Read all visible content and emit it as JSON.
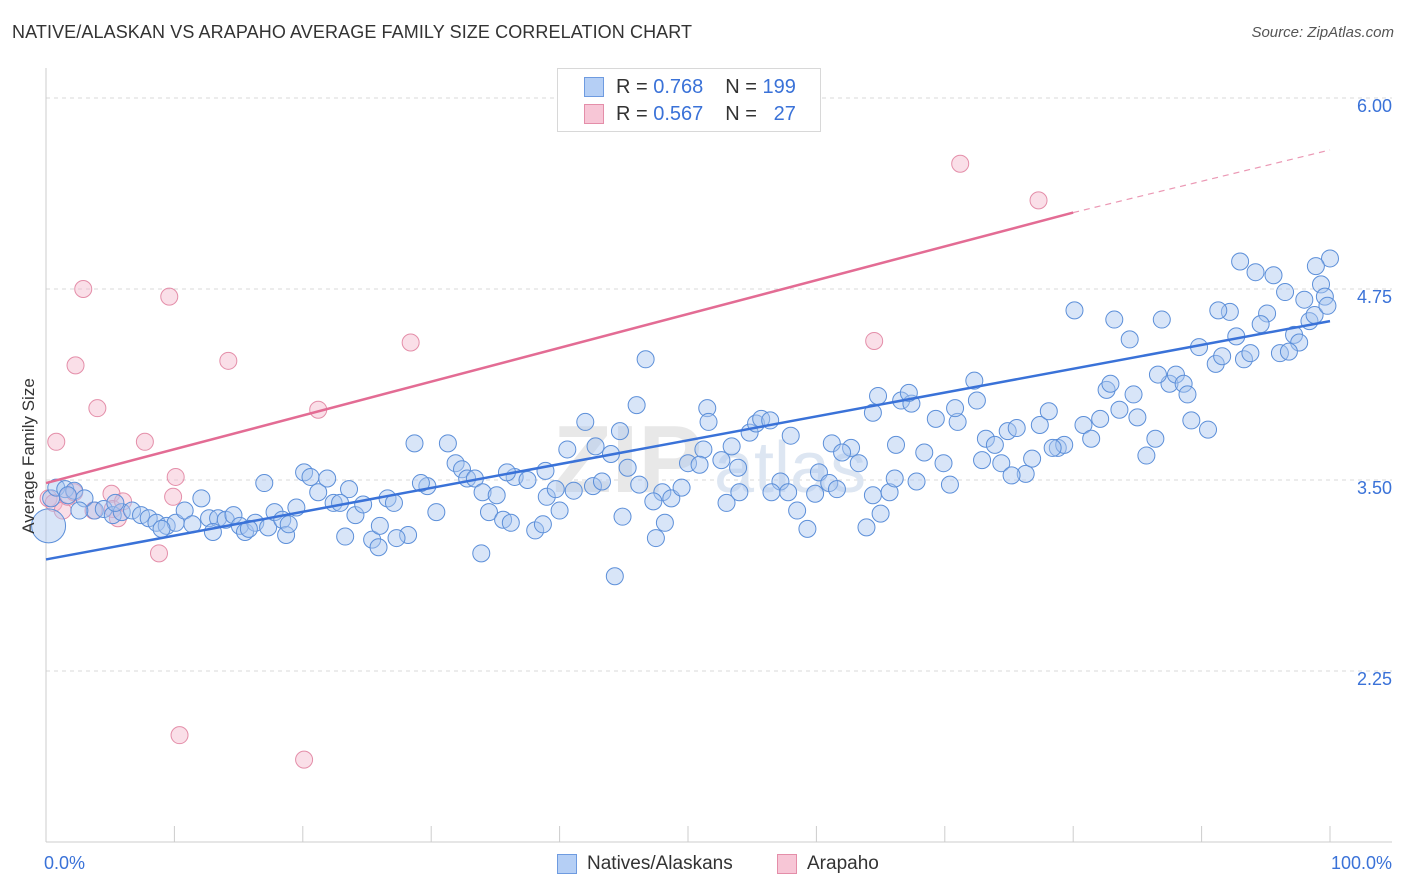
{
  "title": "NATIVE/ALASKAN VS ARAPAHO AVERAGE FAMILY SIZE CORRELATION CHART",
  "source": "Source: ZipAtlas.com",
  "legend": {
    "blue": {
      "r_label": "R =",
      "r_value": "0.768",
      "n_label": "N =",
      "n_value": "199"
    },
    "pink": {
      "r_label": "R =",
      "r_value": "0.567",
      "n_label": "N =",
      "n_value": "27"
    }
  },
  "bottom_legend": {
    "blue_label": "Natives/Alaskans",
    "pink_label": "Arapaho"
  },
  "axes": {
    "y_label": "Average Family Size",
    "x_min_label": "0.0%",
    "x_max_label": "100.0%",
    "y_ticks": [
      "2.25",
      "3.50",
      "4.75",
      "6.00"
    ]
  },
  "colors": {
    "blue": "#3a72d8",
    "blue_fill": "#a9c6f0",
    "pink": "#e36c94",
    "pink_fill": "#f5b8cb",
    "grid": "#d9d9d9",
    "tick_label": "#3a72d8"
  },
  "chart_data": {
    "type": "scatter",
    "xlim": [
      0,
      100
    ],
    "ylim": [
      1.0,
      6.1
    ],
    "xlabel": "",
    "ylabel": "Average Family Size",
    "grid": true,
    "legend_position": "top-center",
    "series": [
      {
        "name": "Natives/Alaskans",
        "color": "#3a72d8",
        "trend": [
          [
            0,
            2.98
          ],
          [
            100,
            4.54
          ]
        ],
        "points": [
          [
            0.2,
            3.2
          ],
          [
            0.4,
            3.38
          ],
          [
            0.8,
            3.45
          ],
          [
            1.5,
            3.44
          ],
          [
            2.2,
            3.43
          ],
          [
            3.0,
            3.38
          ],
          [
            3.8,
            3.3
          ],
          [
            4.5,
            3.31
          ],
          [
            5.2,
            3.27
          ],
          [
            5.9,
            3.29
          ],
          [
            6.7,
            3.3
          ],
          [
            7.4,
            3.27
          ],
          [
            8.0,
            3.25
          ],
          [
            8.6,
            3.22
          ],
          [
            9.4,
            3.2
          ],
          [
            10.1,
            3.22
          ],
          [
            10.8,
            3.3
          ],
          [
            11.4,
            3.21
          ],
          [
            12.1,
            3.38
          ],
          [
            12.7,
            3.25
          ],
          [
            13.4,
            3.25
          ],
          [
            14.0,
            3.24
          ],
          [
            14.6,
            3.27
          ],
          [
            15.1,
            3.2
          ],
          [
            15.5,
            3.16
          ],
          [
            16.3,
            3.22
          ],
          [
            17.0,
            3.48
          ],
          [
            17.3,
            3.19
          ],
          [
            17.8,
            3.29
          ],
          [
            18.4,
            3.24
          ],
          [
            18.7,
            3.14
          ],
          [
            19.5,
            3.32
          ],
          [
            20.1,
            3.55
          ],
          [
            20.6,
            3.52
          ],
          [
            21.2,
            3.42
          ],
          [
            21.9,
            3.51
          ],
          [
            22.4,
            3.35
          ],
          [
            23.3,
            3.13
          ],
          [
            23.6,
            3.44
          ],
          [
            24.1,
            3.27
          ],
          [
            24.7,
            3.34
          ],
          [
            25.4,
            3.11
          ],
          [
            26.0,
            3.2
          ],
          [
            26.6,
            3.38
          ],
          [
            27.1,
            3.35
          ],
          [
            28.2,
            3.14
          ],
          [
            28.7,
            3.74
          ],
          [
            29.7,
            3.46
          ],
          [
            30.4,
            3.29
          ],
          [
            31.3,
            3.74
          ],
          [
            31.9,
            3.61
          ],
          [
            32.4,
            3.57
          ],
          [
            32.8,
            3.51
          ],
          [
            33.4,
            3.51
          ],
          [
            34.0,
            3.42
          ],
          [
            34.5,
            3.29
          ],
          [
            35.1,
            3.4
          ],
          [
            35.6,
            3.24
          ],
          [
            36.2,
            3.22
          ],
          [
            36.5,
            3.52
          ],
          [
            37.5,
            3.5
          ],
          [
            38.1,
            3.17
          ],
          [
            38.7,
            3.21
          ],
          [
            39.0,
            3.39
          ],
          [
            39.7,
            3.44
          ],
          [
            40.0,
            3.3
          ],
          [
            40.6,
            3.7
          ],
          [
            41.1,
            3.43
          ],
          [
            42.0,
            3.88
          ],
          [
            42.6,
            3.46
          ],
          [
            43.3,
            3.49
          ],
          [
            44.0,
            3.67
          ],
          [
            44.3,
            2.87
          ],
          [
            44.9,
            3.26
          ],
          [
            45.3,
            3.58
          ],
          [
            46.7,
            4.29
          ],
          [
            46.0,
            3.99
          ],
          [
            47.5,
            3.12
          ],
          [
            48.0,
            3.42
          ],
          [
            48.7,
            3.38
          ],
          [
            48.2,
            3.22
          ],
          [
            49.5,
            3.45
          ],
          [
            50.0,
            3.61
          ],
          [
            51.2,
            3.7
          ],
          [
            51.5,
            3.97
          ],
          [
            52.6,
            3.63
          ],
          [
            53.4,
            3.72
          ],
          [
            53.0,
            3.35
          ],
          [
            54.0,
            3.42
          ],
          [
            54.8,
            3.81
          ],
          [
            55.3,
            3.87
          ],
          [
            55.7,
            3.9
          ],
          [
            56.4,
            3.89
          ],
          [
            57.2,
            3.49
          ],
          [
            57.8,
            3.42
          ],
          [
            58.0,
            3.79
          ],
          [
            58.5,
            3.3
          ],
          [
            59.3,
            3.18
          ],
          [
            60.2,
            3.55
          ],
          [
            61.0,
            3.48
          ],
          [
            61.6,
            3.44
          ],
          [
            61.2,
            3.74
          ],
          [
            62.7,
            3.71
          ],
          [
            62.0,
            3.68
          ],
          [
            63.3,
            3.61
          ],
          [
            64.4,
            3.4
          ],
          [
            65.0,
            3.28
          ],
          [
            65.7,
            3.42
          ],
          [
            66.1,
            3.51
          ],
          [
            66.6,
            4.02
          ],
          [
            67.4,
            4.0
          ],
          [
            67.8,
            3.49
          ],
          [
            68.4,
            3.68
          ],
          [
            69.3,
            3.9
          ],
          [
            69.9,
            3.61
          ],
          [
            70.4,
            3.47
          ],
          [
            71.0,
            3.88
          ],
          [
            72.3,
            4.15
          ],
          [
            72.5,
            4.02
          ],
          [
            73.2,
            3.77
          ],
          [
            73.9,
            3.73
          ],
          [
            74.4,
            3.61
          ],
          [
            74.9,
            3.82
          ],
          [
            75.6,
            3.84
          ],
          [
            76.3,
            3.54
          ],
          [
            76.8,
            3.64
          ],
          [
            77.4,
            3.86
          ],
          [
            78.1,
            3.95
          ],
          [
            78.8,
            3.71
          ],
          [
            79.3,
            3.73
          ],
          [
            80.1,
            4.61
          ],
          [
            80.8,
            3.86
          ],
          [
            81.4,
            3.77
          ],
          [
            82.1,
            3.9
          ],
          [
            82.6,
            4.09
          ],
          [
            83.2,
            4.55
          ],
          [
            83.6,
            3.96
          ],
          [
            84.4,
            4.42
          ],
          [
            85.0,
            3.91
          ],
          [
            85.7,
            3.66
          ],
          [
            86.4,
            3.77
          ],
          [
            86.9,
            4.55
          ],
          [
            87.5,
            4.13
          ],
          [
            88.0,
            4.19
          ],
          [
            88.6,
            4.13
          ],
          [
            89.2,
            3.89
          ],
          [
            89.8,
            4.37
          ],
          [
            90.5,
            3.83
          ],
          [
            91.1,
            4.26
          ],
          [
            91.6,
            4.31
          ],
          [
            92.2,
            4.6
          ],
          [
            92.7,
            4.44
          ],
          [
            93.3,
            4.29
          ],
          [
            93.8,
            4.33
          ],
          [
            94.2,
            4.86
          ],
          [
            95.1,
            4.59
          ],
          [
            95.6,
            4.84
          ],
          [
            96.1,
            4.33
          ],
          [
            96.5,
            4.73
          ],
          [
            97.2,
            4.45
          ],
          [
            97.6,
            4.4
          ],
          [
            98.0,
            4.68
          ],
          [
            98.4,
            4.54
          ],
          [
            98.8,
            4.58
          ],
          [
            99.3,
            4.78
          ],
          [
            99.6,
            4.7
          ],
          [
            99.8,
            4.64
          ],
          [
            100.0,
            4.95
          ],
          [
            1.7,
            3.4
          ],
          [
            2.6,
            3.3
          ],
          [
            5.4,
            3.35
          ],
          [
            9.0,
            3.18
          ],
          [
            13.0,
            3.16
          ],
          [
            15.8,
            3.18
          ],
          [
            18.9,
            3.21
          ],
          [
            22.9,
            3.35
          ],
          [
            25.9,
            3.06
          ],
          [
            27.3,
            3.12
          ],
          [
            29.2,
            3.48
          ],
          [
            33.9,
            3.02
          ],
          [
            35.9,
            3.55
          ],
          [
            38.9,
            3.56
          ],
          [
            42.8,
            3.72
          ],
          [
            44.7,
            3.82
          ],
          [
            46.2,
            3.47
          ],
          [
            47.3,
            3.36
          ],
          [
            50.9,
            3.6
          ],
          [
            51.6,
            3.88
          ],
          [
            53.9,
            3.58
          ],
          [
            56.5,
            3.42
          ],
          [
            59.9,
            3.41
          ],
          [
            63.9,
            3.19
          ],
          [
            64.4,
            3.94
          ],
          [
            64.8,
            4.05
          ],
          [
            66.2,
            3.73
          ],
          [
            67.2,
            4.07
          ],
          [
            70.8,
            3.97
          ],
          [
            72.9,
            3.63
          ],
          [
            75.2,
            3.53
          ],
          [
            78.4,
            3.71
          ],
          [
            82.9,
            4.13
          ],
          [
            84.7,
            4.06
          ],
          [
            86.6,
            4.19
          ],
          [
            88.9,
            4.06
          ],
          [
            91.3,
            4.61
          ],
          [
            93.0,
            4.93
          ],
          [
            94.6,
            4.52
          ],
          [
            96.8,
            4.34
          ],
          [
            98.9,
            4.9
          ]
        ]
      },
      {
        "name": "Arapaho",
        "color": "#e36c94",
        "trend": [
          [
            0,
            3.48
          ],
          [
            80,
            5.25
          ]
        ],
        "trend_dashed": [
          [
            80,
            5.25
          ],
          [
            100,
            5.66
          ]
        ],
        "points": [
          [
            0.2,
            3.38
          ],
          [
            0.6,
            3.35
          ],
          [
            0.8,
            3.75
          ],
          [
            1.3,
            3.3
          ],
          [
            1.7,
            3.39
          ],
          [
            2.2,
            3.42
          ],
          [
            2.3,
            4.25
          ],
          [
            2.9,
            4.75
          ],
          [
            3.7,
            3.3
          ],
          [
            4.0,
            3.97
          ],
          [
            5.1,
            3.41
          ],
          [
            5.2,
            3.31
          ],
          [
            5.6,
            3.25
          ],
          [
            6.0,
            3.36
          ],
          [
            7.7,
            3.75
          ],
          [
            8.8,
            3.02
          ],
          [
            9.6,
            4.7
          ],
          [
            9.9,
            3.39
          ],
          [
            10.1,
            3.52
          ],
          [
            10.4,
            1.83
          ],
          [
            14.2,
            4.28
          ],
          [
            20.1,
            1.67
          ],
          [
            21.2,
            3.96
          ],
          [
            28.4,
            4.4
          ],
          [
            64.5,
            4.41
          ],
          [
            71.2,
            5.57
          ],
          [
            77.3,
            5.33
          ]
        ]
      }
    ]
  }
}
